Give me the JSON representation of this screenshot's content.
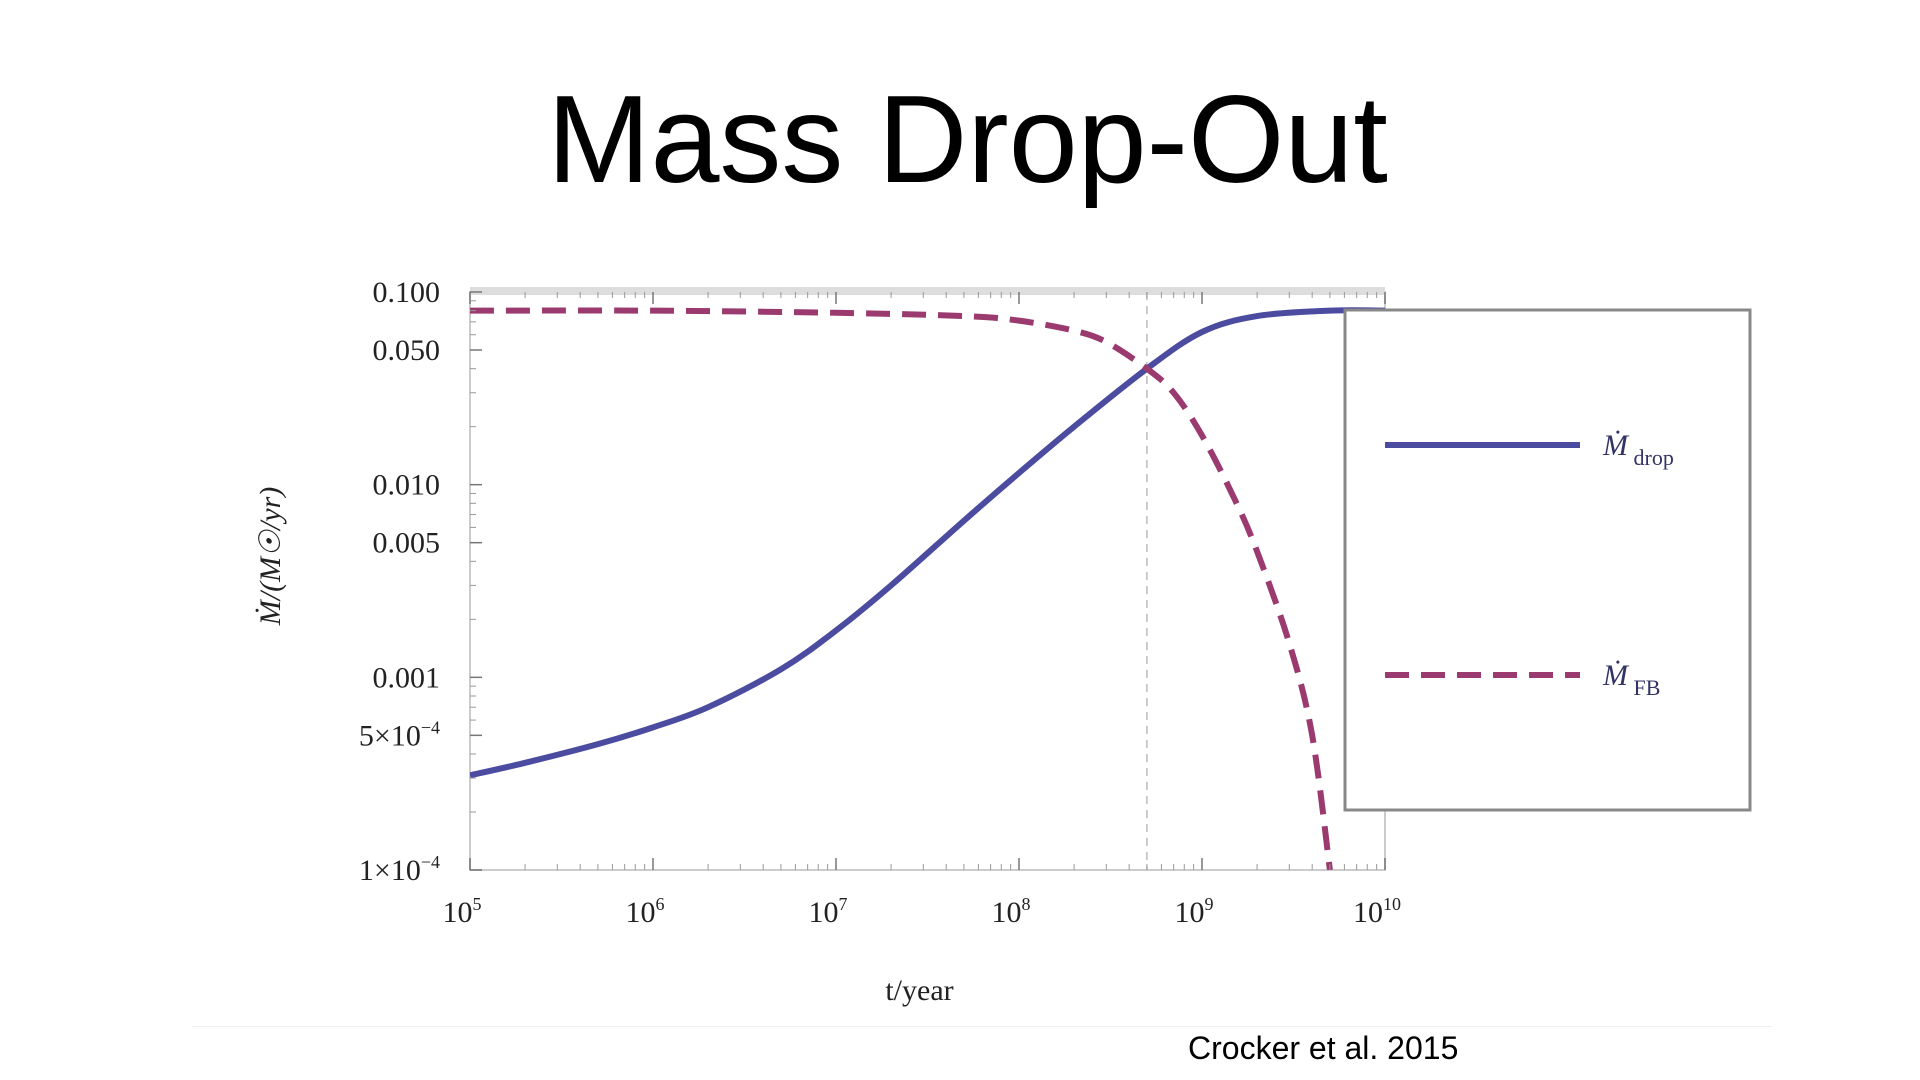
{
  "slide": {
    "title": "Mass Drop-Out",
    "credit": "Crocker et al. 2015"
  },
  "colors": {
    "drop": "#4b4ba0",
    "fb": "#9b3a6e",
    "axis": "#cccccc",
    "legend_border": "#888888",
    "reference_line": "#bbbbbb"
  },
  "chart_data": {
    "type": "line",
    "title": "",
    "xlabel": "t/year",
    "ylabel": "Ṁ/(M☉/yr)",
    "xscale": "log",
    "yscale": "log",
    "xlim": [
      100000,
      10000000000
    ],
    "ylim": [
      0.0001,
      0.1
    ],
    "x_ticks": [
      {
        "value": 100000,
        "base": "10",
        "exp": "5"
      },
      {
        "value": 1000000,
        "base": "10",
        "exp": "6"
      },
      {
        "value": 10000000,
        "base": "10",
        "exp": "7"
      },
      {
        "value": 100000000,
        "base": "10",
        "exp": "8"
      },
      {
        "value": 1000000000,
        "base": "10",
        "exp": "9"
      },
      {
        "value": 10000000000,
        "base": "10",
        "exp": "10"
      }
    ],
    "y_ticks": [
      {
        "value": 0.1,
        "label": "0.100"
      },
      {
        "value": 0.05,
        "label": "0.050"
      },
      {
        "value": 0.01,
        "label": "0.010"
      },
      {
        "value": 0.005,
        "label": "0.005"
      },
      {
        "value": 0.001,
        "label": "0.001"
      },
      {
        "value": 0.0005,
        "label": "5×10",
        "exp": "−4"
      },
      {
        "value": 0.0001,
        "label": "1×10",
        "exp": "−4"
      }
    ],
    "reference_line_x": 500000000,
    "legend_position": "right",
    "series": [
      {
        "name": "drop",
        "legend_symbol": "Ṁ",
        "legend_subscript": "drop",
        "style": "solid",
        "x": [
          100000,
          200000,
          500000,
          1000000,
          2000000,
          5000000,
          10000000,
          20000000,
          50000000,
          100000000,
          200000000,
          500000000,
          1000000000,
          2000000000,
          5000000000,
          10000000000
        ],
        "y": [
          0.00031,
          0.00036,
          0.00045,
          0.00055,
          0.0007,
          0.0011,
          0.00175,
          0.003,
          0.0065,
          0.0115,
          0.02,
          0.04,
          0.062,
          0.075,
          0.08,
          0.08
        ]
      },
      {
        "name": "FB",
        "legend_symbol": "Ṁ",
        "legend_subscript": "FB",
        "style": "dashed",
        "x": [
          100000,
          1000000,
          10000000,
          50000000,
          100000000,
          200000000,
          300000000,
          500000000,
          700000000,
          1000000000,
          1500000000,
          2000000000,
          3000000000,
          4000000000,
          5000000000
        ],
        "y": [
          0.08,
          0.08,
          0.078,
          0.075,
          0.071,
          0.063,
          0.055,
          0.04,
          0.03,
          0.018,
          0.0085,
          0.0045,
          0.0015,
          0.0005,
          0.0001
        ]
      }
    ]
  }
}
